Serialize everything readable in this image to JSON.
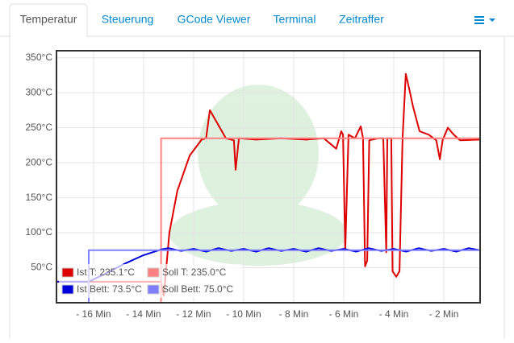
{
  "tabs": [
    "Temperatur",
    "Steuerung",
    "GCode Viewer",
    "Terminal",
    "Zeitraffer"
  ],
  "chart_data": {
    "type": "line",
    "xlim": [
      -17.48,
      -0.55
    ],
    "ylim": [
      0,
      360
    ],
    "xticks": [
      {
        "value": -16,
        "label": "- 16 Min"
      },
      {
        "value": -14,
        "label": "- 14 Min"
      },
      {
        "value": -12,
        "label": "- 12 Min"
      },
      {
        "value": -10,
        "label": "- 10 Min"
      },
      {
        "value": -8,
        "label": "- 8 Min"
      },
      {
        "value": -6,
        "label": "- 6 Min"
      },
      {
        "value": -4,
        "label": "- 4 Min"
      },
      {
        "value": -2,
        "label": "- 2 Min"
      }
    ],
    "yticks": [
      {
        "value": 50,
        "label": "50°C"
      },
      {
        "value": 100,
        "label": "100°C"
      },
      {
        "value": 150,
        "label": "150°C"
      },
      {
        "value": 200,
        "label": "200°C"
      },
      {
        "value": 250,
        "label": "250°C"
      },
      {
        "value": 300,
        "label": "300°C"
      },
      {
        "value": 350,
        "label": "350°C"
      }
    ],
    "grid": true,
    "legend": "lower left",
    "series": [
      {
        "name": "Ist T: 235.1°C",
        "color": "#dd0000",
        "x": [
          -17.48,
          -13.3,
          -13.19,
          -12.97,
          -12.65,
          -12.16,
          -11.68,
          -11.5,
          -11.35,
          -11.03,
          -10.71,
          -10.39,
          -10.32,
          -10.19,
          -9.5,
          -8.5,
          -7.5,
          -6.8,
          -6.3,
          -6.1,
          -6.03,
          -5.94,
          -5.81,
          -5.55,
          -5.32,
          -5.23,
          -5.15,
          -5.06,
          -4.98,
          -4.6,
          -4.42,
          -4.3,
          -4.26,
          -4.1,
          -4.05,
          -3.9,
          -3.77,
          -3.65,
          -3.52,
          -3.35,
          -3.23,
          -2.97,
          -2.6,
          -2.3,
          -2.16,
          -2.05,
          -1.84,
          -1.6,
          -1.35,
          -0.55
        ],
        "values": [
          30,
          30,
          10,
          100,
          160,
          210,
          233,
          235,
          275,
          255,
          235,
          232,
          190,
          235,
          233,
          235,
          233,
          235,
          220,
          245,
          240,
          75,
          240,
          235,
          252,
          235,
          52,
          60,
          232,
          235,
          235,
          72,
          235,
          235,
          45,
          37,
          45,
          235,
          327,
          300,
          280,
          245,
          240,
          232,
          205,
          232,
          250,
          240,
          232,
          233
        ]
      },
      {
        "name": "Soll T: 235.0°C",
        "color": "#ff8080",
        "x": [
          -17.48,
          -13.3,
          -13.3,
          -0.55
        ],
        "values": [
          0,
          0,
          235,
          235
        ]
      },
      {
        "name": "Ist Bett: 73.5°C",
        "color": "#0000dd",
        "x": [
          -17.48,
          -16.19,
          -15.5,
          -14.8,
          -14.0,
          -13.3,
          -13.0,
          -12.5,
          -12.0,
          -11.5,
          -11.0,
          -10.5,
          -10.0,
          -9.5,
          -9.0,
          -8.5,
          -8.0,
          -7.5,
          -7.0,
          -6.5,
          -6.0,
          -5.5,
          -5.0,
          -4.5,
          -4.0,
          -3.5,
          -3.0,
          -2.5,
          -2.0,
          -1.5,
          -1.0,
          -0.55
        ],
        "values": [
          30,
          30,
          42,
          55,
          68,
          76,
          78,
          74,
          77,
          73,
          78,
          74,
          77,
          73,
          78,
          74,
          77,
          73,
          78,
          74,
          77,
          73,
          78,
          74,
          77,
          73,
          78,
          74,
          77,
          73,
          78,
          75
        ]
      },
      {
        "name": "Soll Bett: 75.0°C",
        "color": "#8080ff",
        "x": [
          -17.48,
          -16.19,
          -16.19,
          -0.55
        ],
        "values": [
          0,
          0,
          75,
          75
        ]
      }
    ]
  }
}
